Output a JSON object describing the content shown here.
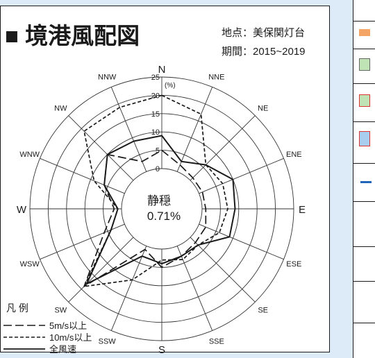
{
  "header": {
    "title": "■ 境港風配図",
    "location": "地点：美保関灯台",
    "period": "期間：2015~2019"
  },
  "calm": {
    "label": "静穏",
    "value": "0.71%"
  },
  "legend": {
    "title": "凡 例",
    "items": [
      "5m/s以上",
      "10m/s以上",
      "全風速"
    ]
  },
  "colors": {
    "background": "#ddeaf7",
    "line": "#1a1a1a",
    "grid": "#333333"
  },
  "chart_data": {
    "type": "radar",
    "unit": "(%)",
    "directions": [
      "N",
      "NNE",
      "NE",
      "ENE",
      "E",
      "ESE",
      "SE",
      "SSE",
      "S",
      "SSW",
      "SW",
      "WSW",
      "W",
      "WNW",
      "NW",
      "NNW"
    ],
    "radial_ticks": [
      0,
      5,
      10,
      15,
      20,
      25
    ],
    "rlim": [
      0,
      25
    ],
    "series": [
      {
        "name": "5m/s以上",
        "dash": "long",
        "values": [
          5,
          2,
          1,
          1,
          1,
          2,
          2,
          3,
          5,
          1,
          19,
          6,
          2,
          6,
          10,
          3
        ]
      },
      {
        "name": "10m/s以上",
        "dash": "short",
        "values": [
          20,
          17,
          6,
          7,
          7,
          6,
          3,
          4,
          3,
          10,
          19,
          4,
          1,
          9,
          19,
          19
        ]
      },
      {
        "name": "全風速",
        "dash": "solid",
        "values": [
          9,
          3,
          6,
          10,
          9,
          9,
          3,
          3,
          4,
          3,
          18,
          4,
          1,
          6,
          10,
          9
        ]
      }
    ]
  }
}
